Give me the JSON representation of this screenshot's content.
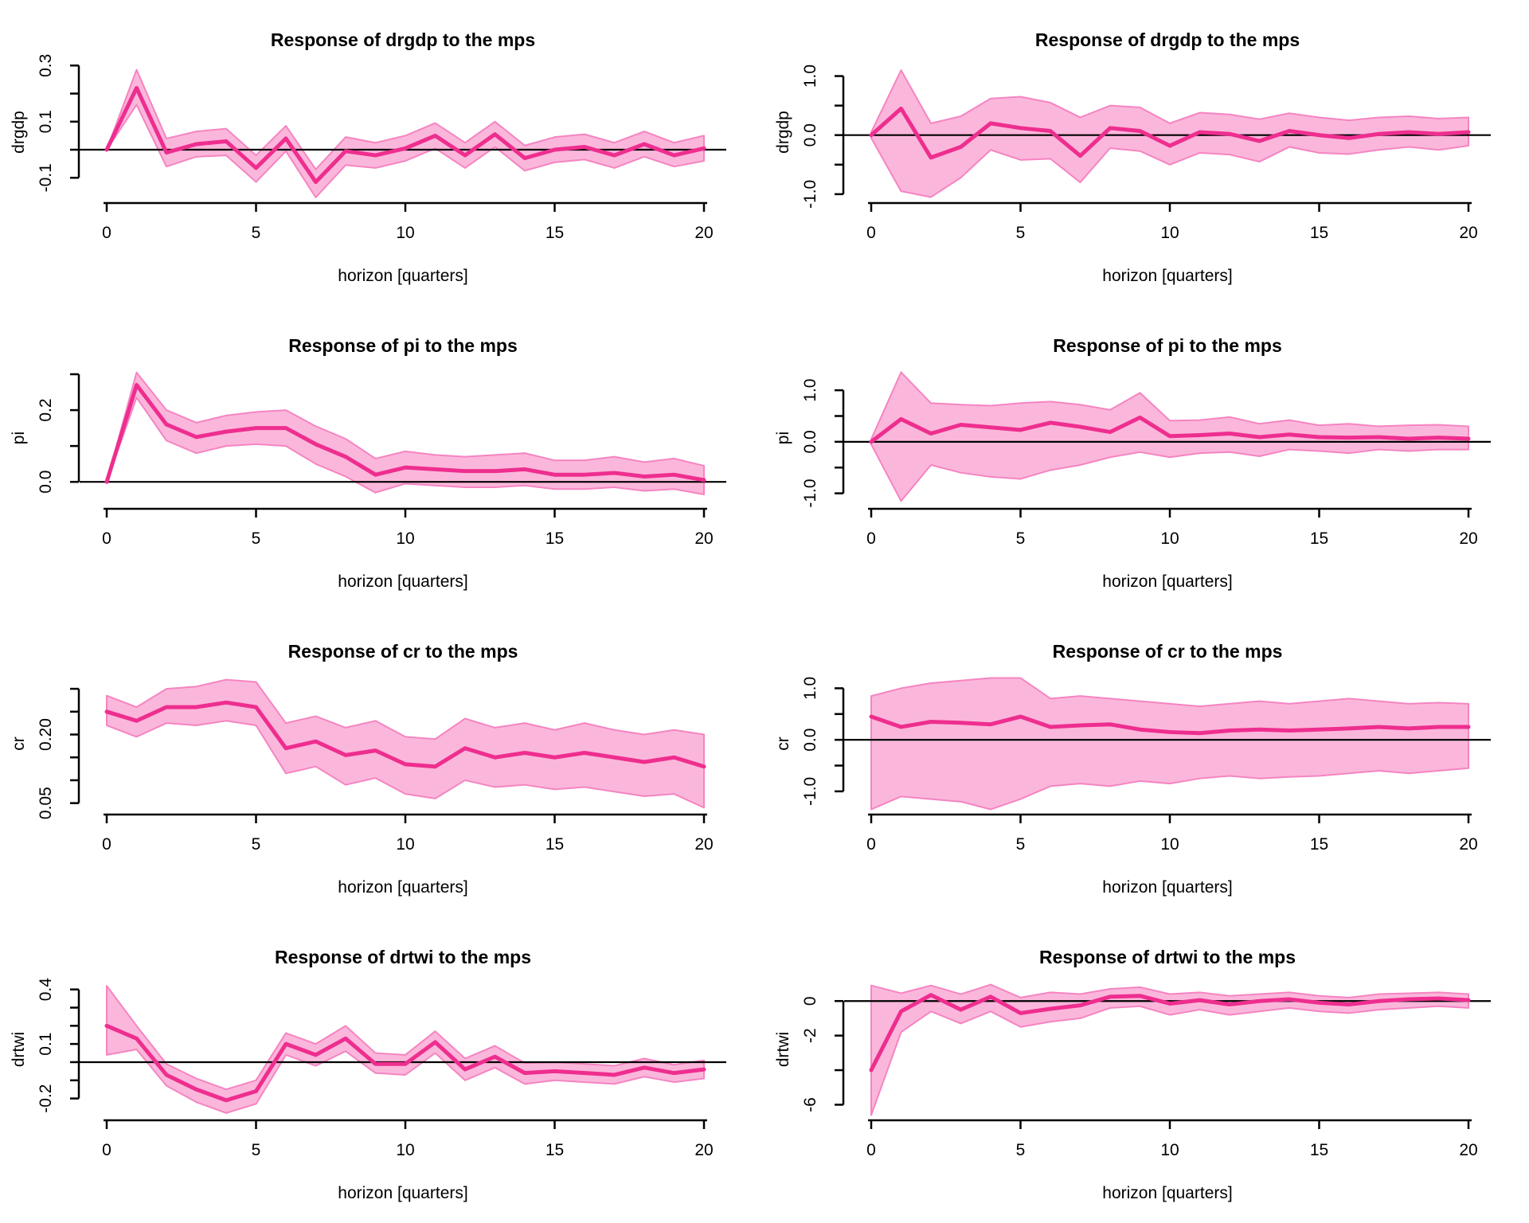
{
  "figure": {
    "description": "Grid of impulse response function plots, 4 rows x 2 columns",
    "background": "#FFFFFF",
    "colors": {
      "line": "#EE2E8F",
      "band_fill": "#FBB7DB",
      "band_edge": "#F584C2",
      "axis": "#000000",
      "zero_line": "#000000"
    },
    "xlabel": "horizon [quarters]"
  },
  "chart_data": [
    {
      "type": "line",
      "slug": "drgdp-left",
      "title": "Response of drgdp to the mps",
      "ylabel": "drgdp",
      "xlabel": "horizon [quarters]",
      "grid": false,
      "legend_position": "none",
      "x": [
        0,
        1,
        2,
        3,
        4,
        5,
        6,
        7,
        8,
        9,
        10,
        11,
        12,
        13,
        14,
        15,
        16,
        17,
        18,
        19,
        20
      ],
      "xticks": [
        0,
        5,
        10,
        15,
        20
      ],
      "xlim": [
        0,
        20
      ],
      "ylim": [
        -0.19,
        0.315
      ],
      "yticks": [
        -0.1,
        0,
        0.1,
        0.2,
        0.3
      ],
      "ytick_labels": [
        "-0.1",
        "",
        "0.1",
        "",
        "0.3"
      ],
      "series": [
        {
          "name": "response",
          "values": [
            0,
            0.22,
            -0.01,
            0.02,
            0.03,
            -0.065,
            0.04,
            -0.115,
            -0.005,
            -0.02,
            0.005,
            0.05,
            -0.02,
            0.055,
            -0.03,
            0,
            0.01,
            -0.02,
            0.02,
            -0.02,
            0.005
          ]
        },
        {
          "name": "upper",
          "values": [
            0,
            0.285,
            0.04,
            0.065,
            0.075,
            -0.02,
            0.085,
            -0.07,
            0.045,
            0.025,
            0.05,
            0.095,
            0.025,
            0.1,
            0.015,
            0.045,
            0.055,
            0.025,
            0.065,
            0.025,
            0.05
          ]
        },
        {
          "name": "lower",
          "values": [
            0,
            0.16,
            -0.06,
            -0.025,
            -0.02,
            -0.115,
            -0.005,
            -0.17,
            -0.055,
            -0.065,
            -0.04,
            0.005,
            -0.065,
            0.01,
            -0.075,
            -0.045,
            -0.035,
            -0.065,
            -0.025,
            -0.06,
            -0.04
          ]
        }
      ]
    },
    {
      "type": "line",
      "slug": "drgdp-right",
      "title": "Response of drgdp to the mps",
      "ylabel": "drgdp",
      "xlabel": "horizon [quarters]",
      "grid": false,
      "legend_position": "none",
      "x": [
        0,
        1,
        2,
        3,
        4,
        5,
        6,
        7,
        8,
        9,
        10,
        11,
        12,
        13,
        14,
        15,
        16,
        17,
        18,
        19,
        20
      ],
      "xticks": [
        0,
        5,
        10,
        15,
        20
      ],
      "xlim": [
        0,
        20
      ],
      "ylim": [
        -1.15,
        1.25
      ],
      "yticks": [
        -1,
        -0.5,
        0,
        0.5,
        1
      ],
      "ytick_labels": [
        "-1.0",
        "",
        "0.0",
        "",
        "1.0"
      ],
      "series": [
        {
          "name": "response",
          "values": [
            0,
            0.45,
            -0.38,
            -0.2,
            0.2,
            0.12,
            0.07,
            -0.35,
            0.12,
            0.07,
            -0.18,
            0.05,
            0.02,
            -0.1,
            0.07,
            0,
            -0.05,
            0.02,
            0.05,
            0.02,
            0.05
          ]
        },
        {
          "name": "upper",
          "values": [
            0.05,
            1.1,
            0.2,
            0.32,
            0.62,
            0.65,
            0.55,
            0.3,
            0.5,
            0.47,
            0.2,
            0.38,
            0.35,
            0.27,
            0.37,
            0.3,
            0.25,
            0.3,
            0.32,
            0.28,
            0.3
          ]
        },
        {
          "name": "lower",
          "values": [
            -0.05,
            -0.95,
            -1.05,
            -0.72,
            -0.25,
            -0.42,
            -0.4,
            -0.8,
            -0.22,
            -0.27,
            -0.5,
            -0.3,
            -0.33,
            -0.45,
            -0.2,
            -0.3,
            -0.32,
            -0.25,
            -0.2,
            -0.25,
            -0.18
          ]
        }
      ]
    },
    {
      "type": "line",
      "slug": "pi-left",
      "title": "Response of pi to the mps",
      "ylabel": "pi",
      "xlabel": "horizon [quarters]",
      "grid": false,
      "legend_position": "none",
      "x": [
        0,
        1,
        2,
        3,
        4,
        5,
        6,
        7,
        8,
        9,
        10,
        11,
        12,
        13,
        14,
        15,
        16,
        17,
        18,
        19,
        20
      ],
      "xticks": [
        0,
        5,
        10,
        15,
        20
      ],
      "xlim": [
        0,
        20
      ],
      "ylim": [
        -0.075,
        0.32
      ],
      "yticks": [
        0,
        0.1,
        0.2,
        0.3
      ],
      "ytick_labels": [
        "0.0",
        "",
        "0.2",
        ""
      ],
      "series": [
        {
          "name": "response",
          "values": [
            0,
            0.27,
            0.16,
            0.125,
            0.14,
            0.15,
            0.15,
            0.105,
            0.07,
            0.02,
            0.04,
            0.035,
            0.03,
            0.03,
            0.035,
            0.02,
            0.02,
            0.025,
            0.015,
            0.02,
            0.005
          ]
        },
        {
          "name": "upper",
          "values": [
            0,
            0.305,
            0.2,
            0.165,
            0.185,
            0.195,
            0.2,
            0.155,
            0.12,
            0.065,
            0.085,
            0.075,
            0.07,
            0.075,
            0.08,
            0.06,
            0.06,
            0.07,
            0.055,
            0.065,
            0.045
          ]
        },
        {
          "name": "lower",
          "values": [
            0,
            0.235,
            0.115,
            0.08,
            0.1,
            0.105,
            0.1,
            0.05,
            0.015,
            -0.03,
            -0.005,
            -0.01,
            -0.015,
            -0.015,
            -0.01,
            -0.02,
            -0.02,
            -0.015,
            -0.025,
            -0.02,
            -0.035
          ]
        }
      ]
    },
    {
      "type": "line",
      "slug": "pi-right",
      "title": "Response of pi to the mps",
      "ylabel": "pi",
      "xlabel": "horizon [quarters]",
      "grid": false,
      "legend_position": "none",
      "x": [
        0,
        1,
        2,
        3,
        4,
        5,
        6,
        7,
        8,
        9,
        10,
        11,
        12,
        13,
        14,
        15,
        16,
        17,
        18,
        19,
        20
      ],
      "xticks": [
        0,
        5,
        10,
        15,
        20
      ],
      "xlim": [
        0,
        20
      ],
      "ylim": [
        -1.3,
        1.45
      ],
      "yticks": [
        -1,
        -0.5,
        0,
        0.5,
        1
      ],
      "ytick_labels": [
        "-1.0",
        "",
        "0.0",
        "",
        "1.0"
      ],
      "series": [
        {
          "name": "response",
          "values": [
            0,
            0.44,
            0.16,
            0.33,
            0.28,
            0.23,
            0.37,
            0.29,
            0.19,
            0.47,
            0.11,
            0.13,
            0.16,
            0.09,
            0.14,
            0.09,
            0.08,
            0.09,
            0.06,
            0.08,
            0.06
          ]
        },
        {
          "name": "upper",
          "values": [
            0.05,
            1.35,
            0.75,
            0.72,
            0.7,
            0.75,
            0.78,
            0.72,
            0.62,
            0.95,
            0.41,
            0.42,
            0.48,
            0.35,
            0.42,
            0.32,
            0.35,
            0.3,
            0.32,
            0.33,
            0.3
          ]
        },
        {
          "name": "lower",
          "values": [
            -0.05,
            -1.15,
            -0.45,
            -0.6,
            -0.68,
            -0.72,
            -0.55,
            -0.45,
            -0.3,
            -0.2,
            -0.3,
            -0.22,
            -0.2,
            -0.28,
            -0.15,
            -0.18,
            -0.22,
            -0.15,
            -0.18,
            -0.15,
            -0.15
          ]
        }
      ]
    },
    {
      "type": "line",
      "slug": "cr-left",
      "title": "Response of cr to the mps",
      "ylabel": "cr",
      "xlabel": "horizon [quarters]",
      "grid": false,
      "legend_position": "none",
      "x": [
        0,
        1,
        2,
        3,
        4,
        5,
        6,
        7,
        8,
        9,
        10,
        11,
        12,
        13,
        14,
        15,
        16,
        17,
        18,
        19,
        20
      ],
      "xticks": [
        0,
        5,
        10,
        15,
        20
      ],
      "xlim": [
        0,
        20
      ],
      "ylim": [
        0.025,
        0.335
      ],
      "yticks": [
        0.05,
        0.1,
        0.15,
        0.2,
        0.25,
        0.3
      ],
      "ytick_labels": [
        "0.05",
        "",
        "",
        "0.20",
        "",
        ""
      ],
      "series": [
        {
          "name": "response",
          "values": [
            0.25,
            0.23,
            0.26,
            0.26,
            0.27,
            0.26,
            0.17,
            0.185,
            0.155,
            0.165,
            0.135,
            0.13,
            0.17,
            0.15,
            0.16,
            0.15,
            0.16,
            0.15,
            0.14,
            0.15,
            0.13
          ]
        },
        {
          "name": "upper",
          "values": [
            0.285,
            0.26,
            0.3,
            0.305,
            0.32,
            0.315,
            0.225,
            0.24,
            0.215,
            0.23,
            0.195,
            0.19,
            0.235,
            0.215,
            0.225,
            0.21,
            0.225,
            0.21,
            0.2,
            0.21,
            0.2
          ]
        },
        {
          "name": "lower",
          "values": [
            0.22,
            0.195,
            0.225,
            0.22,
            0.23,
            0.22,
            0.115,
            0.13,
            0.09,
            0.105,
            0.07,
            0.06,
            0.1,
            0.085,
            0.09,
            0.08,
            0.085,
            0.075,
            0.065,
            0.07,
            0.04
          ]
        }
      ]
    },
    {
      "type": "line",
      "slug": "cr-right",
      "title": "Response of cr to the mps",
      "ylabel": "cr",
      "xlabel": "horizon [quarters]",
      "grid": false,
      "legend_position": "none",
      "x": [
        0,
        1,
        2,
        3,
        4,
        5,
        6,
        7,
        8,
        9,
        10,
        11,
        12,
        13,
        14,
        15,
        16,
        17,
        18,
        19,
        20
      ],
      "xticks": [
        0,
        5,
        10,
        15,
        20
      ],
      "xlim": [
        0,
        20
      ],
      "ylim": [
        -1.45,
        1.3
      ],
      "yticks": [
        -1,
        -0.5,
        0,
        0.5,
        1
      ],
      "ytick_labels": [
        "-1.0",
        "",
        "0.0",
        "",
        "1.0"
      ],
      "series": [
        {
          "name": "response",
          "values": [
            0.45,
            0.25,
            0.35,
            0.33,
            0.3,
            0.45,
            0.25,
            0.28,
            0.3,
            0.2,
            0.15,
            0.13,
            0.18,
            0.2,
            0.18,
            0.2,
            0.22,
            0.25,
            0.22,
            0.25,
            0.25
          ]
        },
        {
          "name": "upper",
          "values": [
            0.85,
            1.0,
            1.1,
            1.15,
            1.2,
            1.2,
            0.8,
            0.85,
            0.8,
            0.75,
            0.7,
            0.65,
            0.7,
            0.75,
            0.7,
            0.75,
            0.8,
            0.75,
            0.7,
            0.72,
            0.7
          ]
        },
        {
          "name": "lower",
          "values": [
            -1.35,
            -1.1,
            -1.15,
            -1.2,
            -1.35,
            -1.15,
            -0.9,
            -0.85,
            -0.9,
            -0.8,
            -0.85,
            -0.75,
            -0.7,
            -0.75,
            -0.72,
            -0.7,
            -0.65,
            -0.6,
            -0.65,
            -0.6,
            -0.55
          ]
        }
      ]
    },
    {
      "type": "line",
      "slug": "drtwi-left",
      "title": "Response of drtwi to the mps",
      "ylabel": "drtwi",
      "xlabel": "horizon [quarters]",
      "grid": false,
      "legend_position": "none",
      "x": [
        0,
        1,
        2,
        3,
        4,
        5,
        6,
        7,
        8,
        9,
        10,
        11,
        12,
        13,
        14,
        15,
        16,
        17,
        18,
        19,
        20
      ],
      "xticks": [
        0,
        5,
        10,
        15,
        20
      ],
      "xlim": [
        0,
        20
      ],
      "ylim": [
        -0.32,
        0.46
      ],
      "yticks": [
        -0.2,
        -0.1,
        0,
        0.1,
        0.2,
        0.3,
        0.4
      ],
      "ytick_labels": [
        "-0.2",
        "",
        "",
        "0.1",
        "",
        "",
        "0.4"
      ],
      "series": [
        {
          "name": "response",
          "values": [
            0.2,
            0.13,
            -0.07,
            -0.15,
            -0.21,
            -0.16,
            0.1,
            0.04,
            0.13,
            -0.01,
            -0.01,
            0.11,
            -0.04,
            0.03,
            -0.06,
            -0.05,
            -0.06,
            -0.07,
            -0.03,
            -0.06,
            -0.04
          ]
        },
        {
          "name": "upper",
          "values": [
            0.42,
            0.2,
            -0.01,
            -0.09,
            -0.15,
            -0.1,
            0.16,
            0.1,
            0.2,
            0.05,
            0.04,
            0.17,
            0.02,
            0.09,
            -0.005,
            0,
            -0.01,
            -0.02,
            0.02,
            -0.015,
            0.01
          ]
        },
        {
          "name": "lower",
          "values": [
            0.04,
            0.07,
            -0.13,
            -0.22,
            -0.28,
            -0.23,
            0.04,
            -0.02,
            0.06,
            -0.06,
            -0.07,
            0.05,
            -0.1,
            -0.03,
            -0.12,
            -0.1,
            -0.11,
            -0.12,
            -0.08,
            -0.11,
            -0.09
          ]
        }
      ]
    },
    {
      "type": "line",
      "slug": "drtwi-right",
      "title": "Response of drtwi to the mps",
      "ylabel": "drtwi",
      "xlabel": "horizon [quarters]",
      "grid": false,
      "legend_position": "none",
      "x": [
        0,
        1,
        2,
        3,
        4,
        5,
        6,
        7,
        8,
        9,
        10,
        11,
        12,
        13,
        14,
        15,
        16,
        17,
        18,
        19,
        20
      ],
      "xticks": [
        0,
        5,
        10,
        15,
        20
      ],
      "xlim": [
        0,
        20
      ],
      "ylim": [
        -6.9,
        1.3
      ],
      "yticks": [
        -6,
        -4,
        -2,
        0
      ],
      "ytick_labels": [
        "-6",
        "",
        "-2",
        "0"
      ],
      "series": [
        {
          "name": "response",
          "values": [
            -4,
            -0.6,
            0.35,
            -0.5,
            0.25,
            -0.7,
            -0.45,
            -0.25,
            0.25,
            0.3,
            -0.15,
            0.05,
            -0.2,
            0,
            0.1,
            -0.1,
            -0.2,
            0,
            0.1,
            0.15,
            0.05
          ]
        },
        {
          "name": "upper",
          "values": [
            0.9,
            0.45,
            0.9,
            0.4,
            0.95,
            0.2,
            0.5,
            0.4,
            0.7,
            0.8,
            0.4,
            0.5,
            0.3,
            0.4,
            0.5,
            0.3,
            0.2,
            0.4,
            0.45,
            0.5,
            0.4
          ]
        },
        {
          "name": "lower",
          "values": [
            -6.6,
            -1.8,
            -0.6,
            -1.3,
            -0.6,
            -1.5,
            -1.2,
            -1.0,
            -0.4,
            -0.3,
            -0.8,
            -0.5,
            -0.8,
            -0.6,
            -0.4,
            -0.6,
            -0.7,
            -0.5,
            -0.4,
            -0.3,
            -0.4
          ]
        }
      ]
    }
  ]
}
